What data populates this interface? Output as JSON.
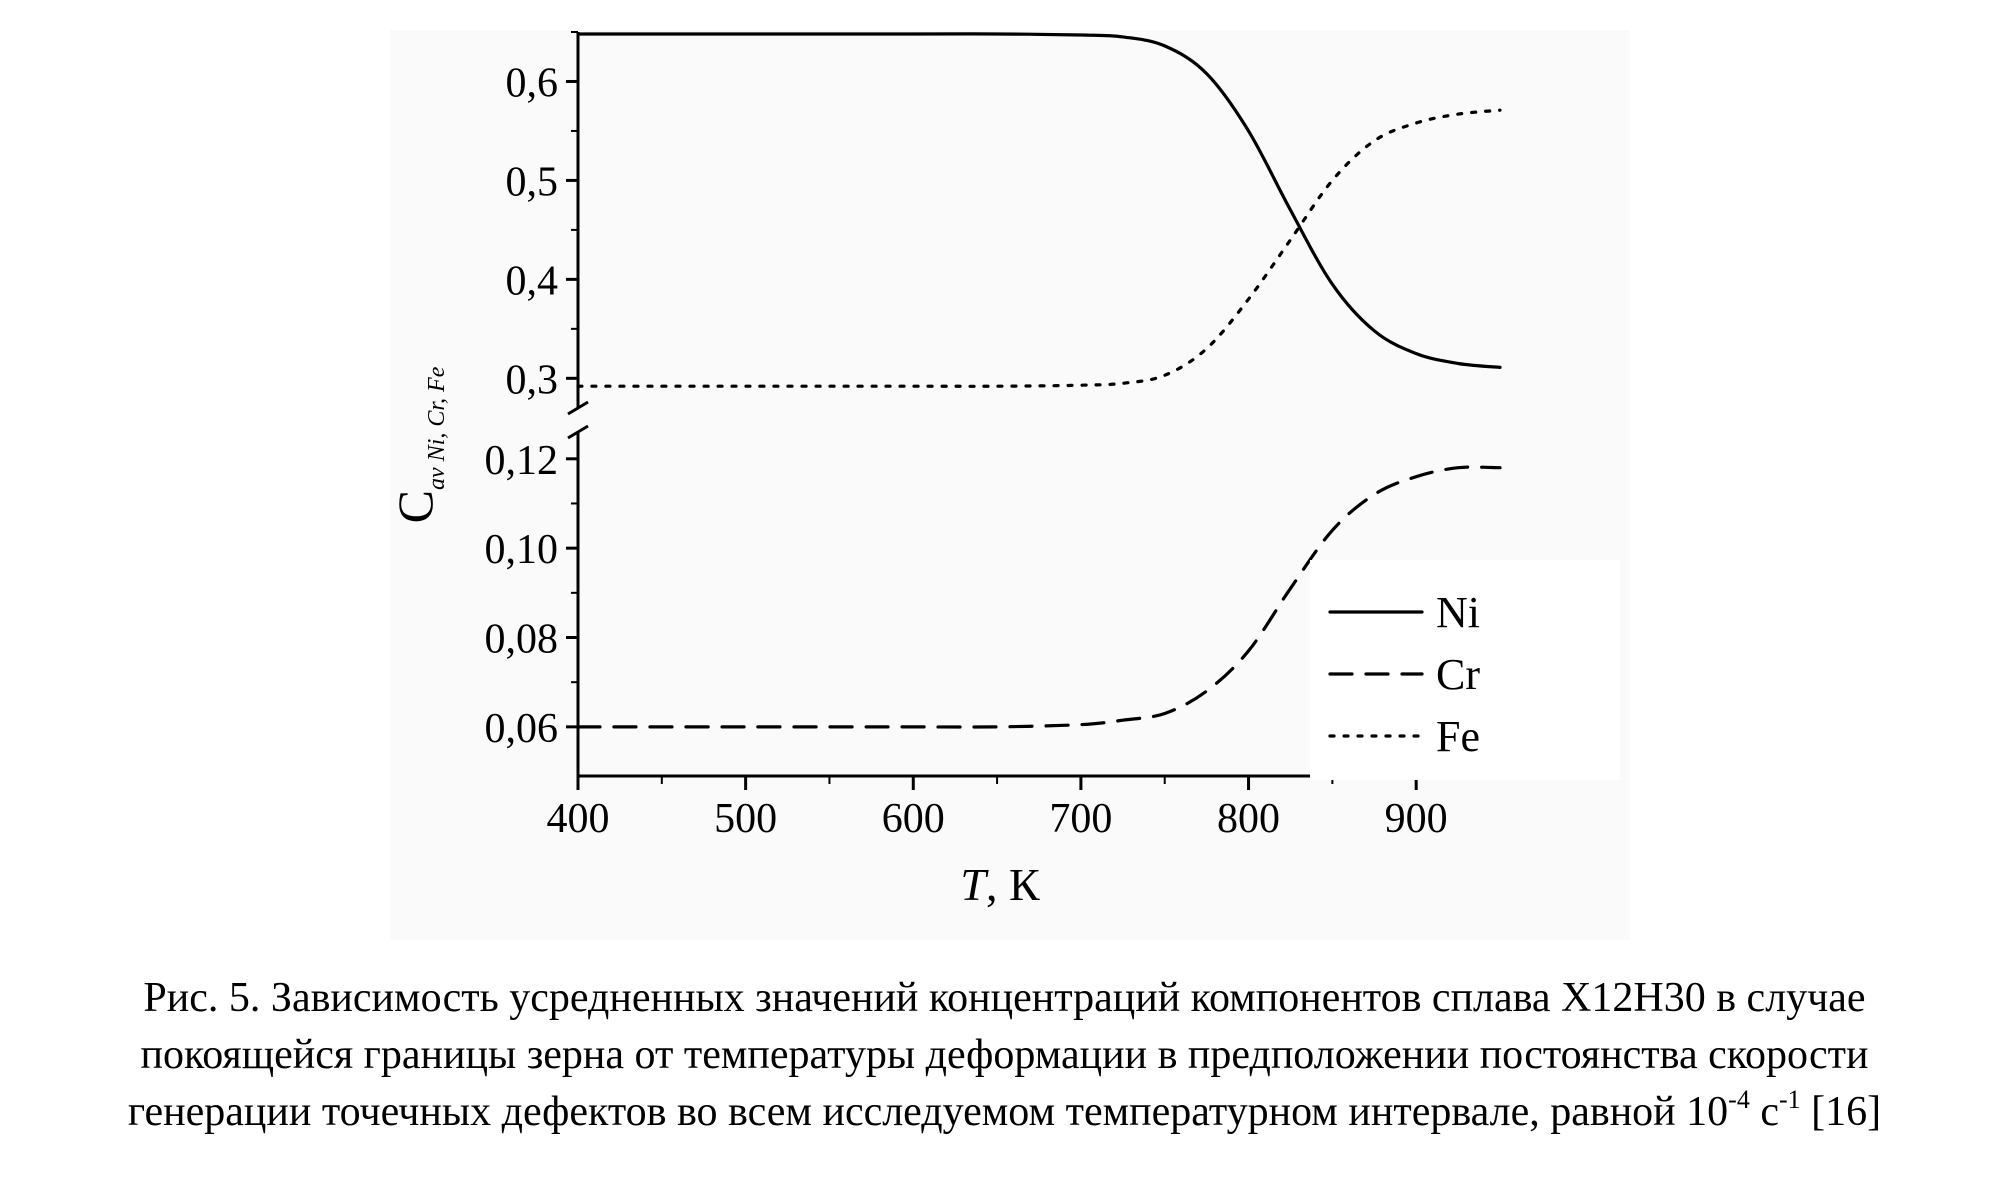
{
  "chart_data": {
    "type": "line",
    "xlabel_italic": "T",
    "xlabel_rest": ", К",
    "ylabel_main": "C",
    "ylabel_sub": "av Ni, Cr, Fe",
    "xlim": [
      400,
      950
    ],
    "x_ticks": [
      "400",
      "500",
      "600",
      "700",
      "800",
      "900"
    ],
    "upper_panel": {
      "ylim": [
        0.27,
        0.65
      ],
      "y_ticks": [
        "0,3",
        "0,4",
        "0,5",
        "0,6"
      ]
    },
    "lower_panel": {
      "ylim": [
        0.049,
        0.126
      ],
      "y_ticks": [
        "0,06",
        "0,08",
        "0,10",
        "0,12"
      ]
    },
    "x": [
      400,
      500,
      600,
      650,
      700,
      725,
      750,
      775,
      800,
      825,
      850,
      875,
      900,
      925,
      950
    ],
    "series": [
      {
        "name": "Ni",
        "panel": "upper",
        "style": "solid",
        "values": [
          0.648,
          0.648,
          0.648,
          0.648,
          0.647,
          0.645,
          0.636,
          0.608,
          0.55,
          0.47,
          0.395,
          0.348,
          0.325,
          0.315,
          0.311
        ]
      },
      {
        "name": "Cr",
        "panel": "lower",
        "style": "dashed",
        "values": [
          0.06,
          0.06,
          0.06,
          0.06,
          0.0605,
          0.0615,
          0.063,
          0.068,
          0.077,
          0.091,
          0.104,
          0.112,
          0.116,
          0.118,
          0.118
        ]
      },
      {
        "name": "Fe",
        "panel": "upper",
        "style": "dotted",
        "values": [
          0.292,
          0.292,
          0.292,
          0.292,
          0.293,
          0.295,
          0.303,
          0.33,
          0.38,
          0.44,
          0.5,
          0.54,
          0.558,
          0.567,
          0.571
        ]
      }
    ],
    "legend": [
      "Ni",
      "Cr",
      "Fe"
    ],
    "legend_position": "lower-right",
    "grid": false
  },
  "caption": {
    "line1": "Рис. 5. Зависимость усредненных значений концентраций компонентов сплава Х12Н30 в случае",
    "line2": "покоящейся границы зерна от температуры деформации в предположении постоянства скорости",
    "line3_start": "генерации точечных дефектов во всем исследуемом температурном интервале, равной 10",
    "line3_sup1": "-4",
    "line3_mid": " с",
    "line3_sup2": "-1",
    "line3_end": " [16]"
  }
}
